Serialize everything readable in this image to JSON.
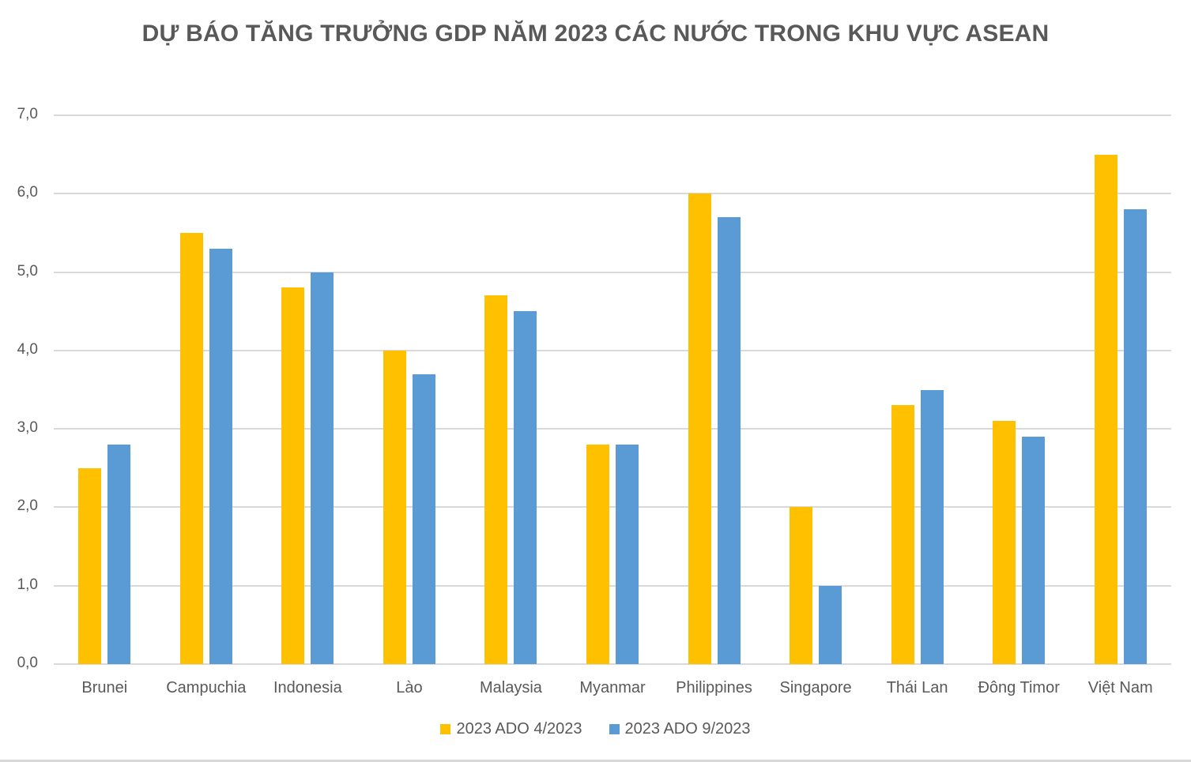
{
  "chart_data": {
    "type": "bar",
    "title": "DỰ BÁO TĂNG TRƯỞNG GDP NĂM 2023 CÁC NƯỚC TRONG KHU VỰC ASEAN",
    "xlabel": "",
    "ylabel": "",
    "categories": [
      "Brunei",
      "Campuchia",
      "Indonesia",
      "Lào",
      "Malaysia",
      "Myanmar",
      "Philippines",
      "Singapore",
      "Thái Lan",
      "Đông Timor",
      "Việt Nam"
    ],
    "series": [
      {
        "name": "2023 ADO 4/2023",
        "color": "#FFC000",
        "values": [
          2.5,
          5.5,
          4.8,
          4.0,
          4.7,
          2.8,
          6.0,
          2.0,
          3.3,
          3.1,
          6.5
        ]
      },
      {
        "name": "2023 ADO 9/2023",
        "color": "#5B9BD5",
        "values": [
          2.8,
          5.3,
          5.0,
          3.7,
          4.5,
          2.8,
          5.7,
          1.0,
          3.5,
          2.9,
          5.8
        ]
      }
    ],
    "ylim": [
      0,
      7
    ],
    "yticks": [
      "0,0",
      "1,0",
      "2,0",
      "3,0",
      "4,0",
      "5,0",
      "6,0",
      "7,0"
    ],
    "grid": true,
    "legend_position": "bottom"
  },
  "legend": [
    {
      "label": "2023 ADO 4/2023",
      "color": "#FFC000"
    },
    {
      "label": "2023 ADO 9/2023",
      "color": "#5B9BD5"
    }
  ]
}
